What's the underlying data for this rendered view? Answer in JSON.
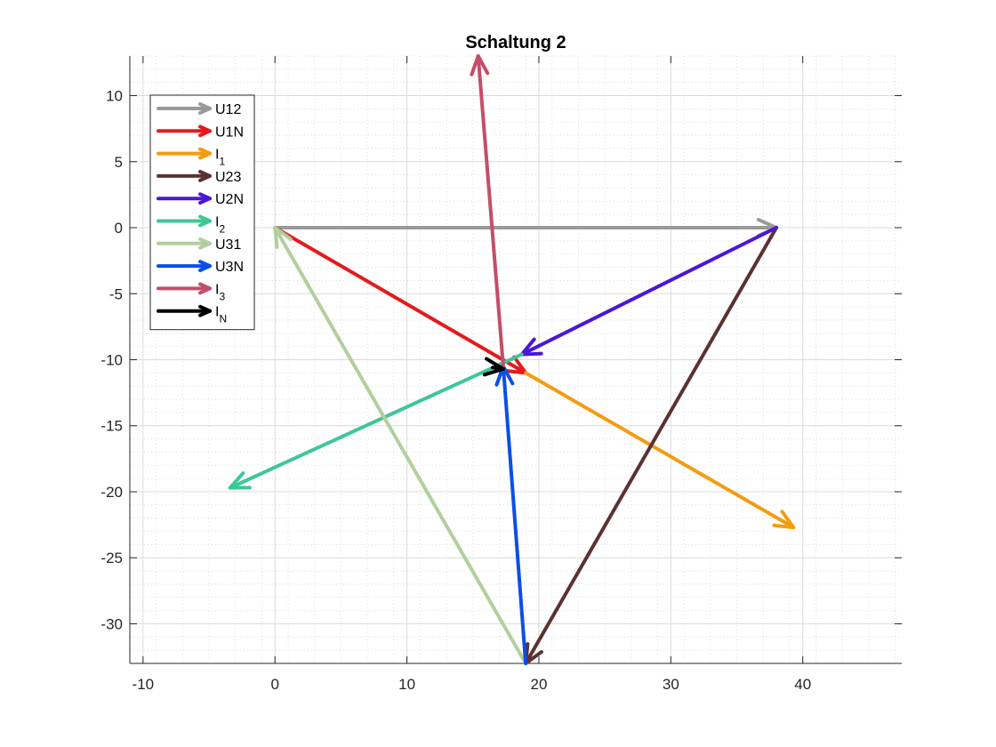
{
  "chart_data": {
    "type": "vector-diagram",
    "title": "Schaltung 2",
    "xlim": [
      -11,
      47.5
    ],
    "ylim": [
      -33,
      13
    ],
    "x_ticks": [
      -10,
      0,
      10,
      20,
      30,
      40
    ],
    "y_ticks": [
      10,
      5,
      0,
      -5,
      -10,
      -15,
      -20,
      -25,
      -30
    ],
    "x_tick_labels": [
      "-10",
      "0",
      "10",
      "20",
      "30",
      "40"
    ],
    "y_tick_labels": [
      "10",
      "5",
      "0",
      "-5",
      "-10",
      "-15",
      "-20",
      "-25",
      "-30"
    ],
    "grid": "major and minor",
    "legend_placement": "top-left",
    "series": [
      {
        "name": "U12",
        "sub": "",
        "color": "#999999",
        "from": [
          0,
          0
        ],
        "to": [
          38,
          0
        ]
      },
      {
        "name": "U1N",
        "sub": "",
        "color": "#e41a1c",
        "from": [
          0,
          0
        ],
        "to": [
          19,
          -11
        ]
      },
      {
        "name": "I",
        "sub": "1",
        "color": "#f39c12",
        "from": [
          19,
          -11
        ],
        "to": [
          39.3,
          -22.7
        ]
      },
      {
        "name": "U23",
        "sub": "",
        "color": "#5b3131",
        "from": [
          38,
          0
        ],
        "to": [
          19,
          -33
        ]
      },
      {
        "name": "U2N",
        "sub": "",
        "color": "#4a16d8",
        "from": [
          38,
          0
        ],
        "to": [
          18.7,
          -9.6
        ]
      },
      {
        "name": "I",
        "sub": "2",
        "color": "#3ec795",
        "from": [
          18.7,
          -9.6
        ],
        "to": [
          -3.4,
          -19.7
        ]
      },
      {
        "name": "U31",
        "sub": "",
        "color": "#b2cf9e",
        "from": [
          19,
          -33
        ],
        "to": [
          0,
          0
        ]
      },
      {
        "name": "U3N",
        "sub": "",
        "color": "#0b4fe6",
        "from": [
          19,
          -33
        ],
        "to": [
          17.3,
          -10.5
        ]
      },
      {
        "name": "I",
        "sub": "3",
        "color": "#c44e68",
        "from": [
          17.3,
          -10.5
        ],
        "to": [
          15.4,
          13
        ]
      },
      {
        "name": "I",
        "sub": "N",
        "color": "#000000",
        "from": [
          16.5,
          -10.6
        ],
        "to": [
          17.3,
          -10.7
        ]
      }
    ]
  }
}
